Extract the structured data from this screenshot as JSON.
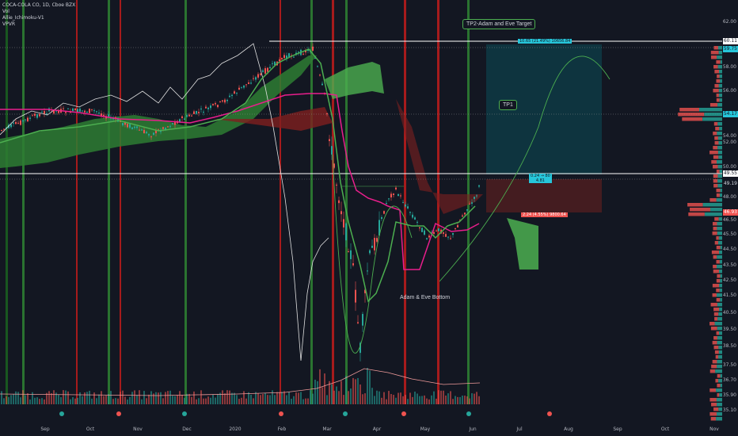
{
  "legend": {
    "symbol_line": "COCA-COLA CO, 1D, Cboe BZX",
    "indicators": [
      "Vol",
      "Allie_Ichimoku-V1",
      "VPVR"
    ]
  },
  "price_axis": {
    "ticks": [
      "62.00",
      "58.00",
      "56.00",
      "54.00",
      "52.00",
      "50.00",
      "48.00",
      "46.50",
      "45.50",
      "44.50",
      "43.50",
      "42.50",
      "41.50",
      "40.50",
      "39.50",
      "38.50",
      "37.50",
      "36.70",
      "35.90",
      "35.10"
    ],
    "tags": [
      {
        "label": "60.11",
        "bg": "#ffffff",
        "fg": "#131722"
      },
      {
        "label": "59.75",
        "bg": "#26c6da",
        "fg": "#131722"
      },
      {
        "label": "54.17",
        "bg": "#26c6da",
        "fg": "#131722"
      },
      {
        "label": "49.55",
        "bg": "#ffffff",
        "fg": "#131722"
      },
      {
        "label": "49.19",
        "bg": "#131722",
        "fg": "#d1d4dc"
      },
      {
        "label": "46.93",
        "bg": "#ef5350",
        "fg": "#ffffff"
      }
    ]
  },
  "time_axis": {
    "labels": [
      "Sep",
      "Oct",
      "Nov",
      "Dec",
      "2020",
      "Feb",
      "Mar",
      "Apr",
      "May",
      "Jun",
      "Jul",
      "Aug",
      "Sep",
      "Oct",
      "Nov"
    ]
  },
  "annotations": {
    "target_callout": "TP2-Adam and Eve Target",
    "tp1": "TP1",
    "bottom": "Adam & Eve Bottom",
    "profit_box": "10.65 (21.49%) 10656.84",
    "entry_box_line1": "0.24 → 80",
    "entry_box_line2": "4.81",
    "stop_box": "2.24 (4.55%) 9800.64"
  },
  "colors": {
    "background": "#131722",
    "bull": "#26a69a",
    "bear": "#ef5350",
    "ichimoku_green": "#4caf50",
    "kijun_magenta": "#e91e8c",
    "profit_zone": "#26c6da",
    "stop_zone": "#ef5350"
  }
}
